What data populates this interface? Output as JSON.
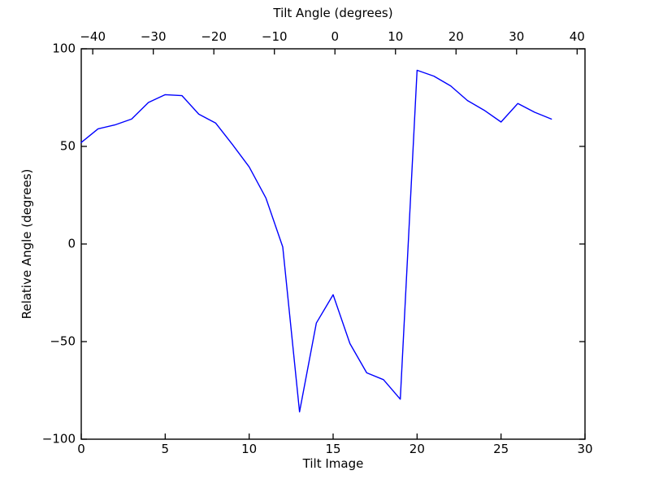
{
  "figure": {
    "background": "#ffffff",
    "axes_color": "#000000",
    "text_color": "#000000"
  },
  "chart_data": {
    "type": "line",
    "title": "",
    "grid": false,
    "legend": null,
    "top_axis": {
      "label": "Tilt Angle (degrees)",
      "lim": [
        -41.9,
        41.3
      ],
      "ticks": [
        -40,
        -30,
        -20,
        -10,
        0,
        10,
        20,
        30,
        40
      ],
      "tick_labels": [
        "−40",
        "−30",
        "−20",
        "−10",
        "0",
        "10",
        "20",
        "30",
        "40"
      ]
    },
    "bottom_axis": {
      "label": "Tilt Image",
      "lim": [
        0,
        30
      ],
      "ticks": [
        0,
        5,
        10,
        15,
        20,
        25,
        30
      ],
      "tick_labels": [
        "0",
        "5",
        "10",
        "15",
        "20",
        "25",
        "30"
      ]
    },
    "left_axis": {
      "label": "Relative Angle (degrees)",
      "lim": [
        -100,
        100
      ],
      "ticks": [
        100,
        50,
        0,
        -50,
        -100
      ],
      "tick_labels": [
        "100",
        "50",
        "0",
        "−50",
        "−100"
      ]
    },
    "series": [
      {
        "name": "relative_angle_vs_tilt_image",
        "color": "#0000ff",
        "x": [
          0,
          1,
          2,
          3,
          4,
          5,
          6,
          7,
          8,
          9,
          10,
          11,
          12,
          13,
          14,
          15,
          16,
          17,
          18,
          19,
          20,
          21,
          22,
          23,
          24,
          25,
          26,
          27,
          28
        ],
        "y": [
          52,
          59,
          61,
          64,
          72.5,
          76.5,
          76,
          66.5,
          62,
          51,
          39.5,
          23.5,
          -1.5,
          -86,
          -40.5,
          -26,
          -51,
          -66,
          -69.5,
          -79.5,
          89,
          86,
          81,
          73.5,
          68.5,
          62.5,
          72,
          67.5,
          64
        ]
      }
    ]
  }
}
